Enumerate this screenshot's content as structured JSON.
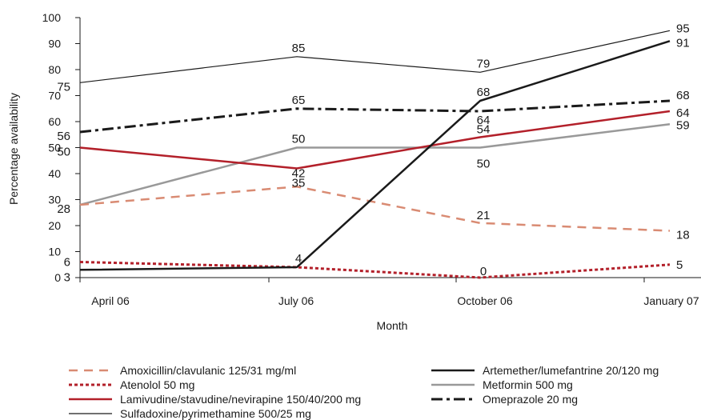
{
  "chart_data": {
    "type": "line",
    "xlabel": "Month",
    "ylabel": "Percentage availability",
    "categories": [
      "April 06",
      "July 06",
      "October 06",
      "January 07"
    ],
    "ylim": [
      0,
      100
    ],
    "yticks": [
      0,
      10,
      20,
      30,
      40,
      50,
      60,
      70,
      80,
      90,
      100
    ],
    "grid": false,
    "legend_position": "bottom",
    "series": [
      {
        "name": "Amoxicillin/clavulanic 125/31 mg/ml",
        "values": [
          28,
          35,
          21,
          18
        ],
        "color": "#d98b73",
        "style": "dashed"
      },
      {
        "name": "Artemether/lumefantrine 20/120 mg",
        "values": [
          3,
          4,
          68,
          91
        ],
        "color": "#1a1a1a",
        "style": "solid-thick"
      },
      {
        "name": "Atenolol 50 mg",
        "values": [
          6,
          4,
          0,
          5
        ],
        "color": "#b3202a",
        "style": "dotted"
      },
      {
        "name": "Metformin 500 mg",
        "values": [
          28,
          50,
          50,
          59
        ],
        "color": "#999999",
        "style": "solid-thick"
      },
      {
        "name": "Lamivudine/stavudine/nevirapine 150/40/200 mg",
        "values": [
          50,
          42,
          54,
          64
        ],
        "color": "#b3202a",
        "style": "solid-thick"
      },
      {
        "name": "Omeprazole 20 mg",
        "values": [
          56,
          65,
          64,
          68
        ],
        "color": "#1a1a1a",
        "style": "dashdot"
      },
      {
        "name": "Sulfadoxine/pyrimethamine 500/25 mg",
        "values": [
          75,
          85,
          79,
          95
        ],
        "color": "#1a1a1a",
        "style": "solid-thin"
      }
    ],
    "data_labels": [
      {
        "text": "75",
        "x": 0,
        "y": 75
      },
      {
        "text": "56",
        "x": 0,
        "y": 56
      },
      {
        "text": "50",
        "x": 0,
        "y": 50
      },
      {
        "text": "28",
        "x": 0,
        "y": 28
      },
      {
        "text": "6",
        "x": 0,
        "y": 6
      },
      {
        "text": "3",
        "x": 0,
        "y": 3
      },
      {
        "text": "85",
        "x": 1,
        "y": 85
      },
      {
        "text": "65",
        "x": 1,
        "y": 65
      },
      {
        "text": "50",
        "x": 1,
        "y": 50
      },
      {
        "text": "42",
        "x": 1,
        "y": 42
      },
      {
        "text": "35",
        "x": 1,
        "y": 35
      },
      {
        "text": "4",
        "x": 1,
        "y": 4
      },
      {
        "text": "79",
        "x": 2,
        "y": 79
      },
      {
        "text": "68",
        "x": 2,
        "y": 68
      },
      {
        "text": "64",
        "x": 2,
        "y": 64
      },
      {
        "text": "54",
        "x": 2,
        "y": 54
      },
      {
        "text": "50",
        "x": 2,
        "y": 50
      },
      {
        "text": "21",
        "x": 2,
        "y": 21
      },
      {
        "text": "0",
        "x": 2,
        "y": 0
      },
      {
        "text": "95",
        "x": 3,
        "y": 95
      },
      {
        "text": "91",
        "x": 3,
        "y": 91
      },
      {
        "text": "68",
        "x": 3,
        "y": 68
      },
      {
        "text": "64",
        "x": 3,
        "y": 64
      },
      {
        "text": "59",
        "x": 3,
        "y": 59
      },
      {
        "text": "18",
        "x": 3,
        "y": 18
      },
      {
        "text": "5",
        "x": 3,
        "y": 5
      }
    ]
  }
}
